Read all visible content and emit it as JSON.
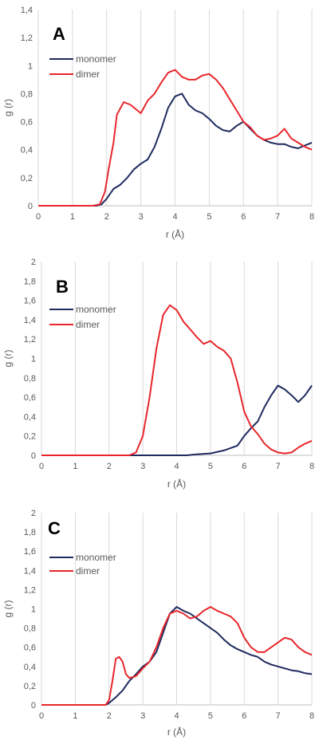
{
  "chart_data": [
    {
      "type": "line",
      "panel_label": "A",
      "xlabel": "r (Å)",
      "ylabel": "g (r)",
      "xlim": [
        0,
        8
      ],
      "ylim": [
        0,
        1.4
      ],
      "x_ticks": [
        "0",
        "1",
        "2",
        "3",
        "4",
        "5",
        "6",
        "7",
        "8"
      ],
      "y_ticks": [
        "0",
        "0,2",
        "0,4",
        "0,6",
        "0,8",
        "1",
        "1,2",
        "1,4"
      ],
      "grid": "vertical",
      "legend_position": "upper-left",
      "series": [
        {
          "name": "monomer",
          "color": "#1f2a5e",
          "x": [
            0,
            1.5,
            1.7,
            1.85,
            2.0,
            2.2,
            2.4,
            2.6,
            2.8,
            3.0,
            3.2,
            3.4,
            3.6,
            3.8,
            4.0,
            4.2,
            4.4,
            4.6,
            4.8,
            5.0,
            5.2,
            5.4,
            5.6,
            5.8,
            6.0,
            6.2,
            6.4,
            6.6,
            6.8,
            7.0,
            7.2,
            7.4,
            7.6,
            7.8,
            8.0
          ],
          "y": [
            0,
            0,
            0,
            0.01,
            0.05,
            0.12,
            0.15,
            0.2,
            0.26,
            0.3,
            0.33,
            0.42,
            0.55,
            0.7,
            0.78,
            0.8,
            0.72,
            0.68,
            0.66,
            0.62,
            0.57,
            0.54,
            0.53,
            0.57,
            0.6,
            0.55,
            0.5,
            0.47,
            0.45,
            0.44,
            0.44,
            0.42,
            0.41,
            0.43,
            0.45
          ]
        },
        {
          "name": "dimer",
          "color": "#e8262b",
          "x": [
            0,
            1.6,
            1.8,
            1.95,
            2.05,
            2.2,
            2.3,
            2.5,
            2.7,
            2.9,
            3.0,
            3.2,
            3.4,
            3.6,
            3.8,
            4.0,
            4.2,
            4.4,
            4.6,
            4.8,
            5.0,
            5.2,
            5.4,
            5.6,
            5.8,
            6.0,
            6.2,
            6.4,
            6.6,
            6.8,
            7.0,
            7.2,
            7.4,
            7.6,
            7.8,
            8.0
          ],
          "y": [
            0,
            0,
            0.01,
            0.1,
            0.25,
            0.45,
            0.65,
            0.74,
            0.72,
            0.68,
            0.66,
            0.75,
            0.8,
            0.88,
            0.95,
            0.97,
            0.92,
            0.9,
            0.9,
            0.93,
            0.94,
            0.9,
            0.84,
            0.76,
            0.68,
            0.6,
            0.56,
            0.5,
            0.47,
            0.48,
            0.5,
            0.55,
            0.48,
            0.45,
            0.42,
            0.4
          ]
        }
      ]
    },
    {
      "type": "line",
      "panel_label": "B",
      "xlabel": "r (Å)",
      "ylabel": "g (r)",
      "xlim": [
        0,
        8
      ],
      "ylim": [
        0,
        2
      ],
      "x_ticks": [
        "0",
        "1",
        "2",
        "3",
        "4",
        "5",
        "6",
        "7",
        "8"
      ],
      "y_ticks": [
        "0",
        "0,2",
        "0,4",
        "0,6",
        "0,8",
        "1",
        "1,2",
        "1,4",
        "1,6",
        "1,8",
        "2"
      ],
      "grid": "vertical",
      "legend_position": "upper-left",
      "series": [
        {
          "name": "monomer",
          "color": "#1f2a5e",
          "x": [
            0,
            4.3,
            4.6,
            5.0,
            5.4,
            5.8,
            6.0,
            6.2,
            6.4,
            6.6,
            6.8,
            7.0,
            7.2,
            7.4,
            7.6,
            7.8,
            8.0
          ],
          "y": [
            0,
            0,
            0.01,
            0.02,
            0.05,
            0.1,
            0.2,
            0.28,
            0.35,
            0.5,
            0.62,
            0.72,
            0.68,
            0.62,
            0.55,
            0.62,
            0.72
          ]
        },
        {
          "name": "dimer",
          "color": "#e8262b",
          "x": [
            0,
            2.6,
            2.8,
            3.0,
            3.2,
            3.4,
            3.6,
            3.8,
            4.0,
            4.2,
            4.4,
            4.6,
            4.8,
            5.0,
            5.2,
            5.4,
            5.6,
            5.8,
            6.0,
            6.2,
            6.4,
            6.6,
            6.8,
            7.0,
            7.2,
            7.4,
            7.6,
            7.8,
            8.0
          ],
          "y": [
            0,
            0,
            0.03,
            0.2,
            0.6,
            1.1,
            1.45,
            1.55,
            1.5,
            1.38,
            1.3,
            1.22,
            1.15,
            1.18,
            1.12,
            1.08,
            1.0,
            0.75,
            0.45,
            0.3,
            0.22,
            0.12,
            0.06,
            0.03,
            0.02,
            0.03,
            0.08,
            0.12,
            0.15
          ]
        }
      ]
    },
    {
      "type": "line",
      "panel_label": "C",
      "xlabel": "r (Å)",
      "ylabel": "g (r)",
      "xlim": [
        0,
        8
      ],
      "ylim": [
        0,
        2
      ],
      "x_ticks": [
        "0",
        "1",
        "2",
        "3",
        "4",
        "5",
        "6",
        "7",
        "8"
      ],
      "y_ticks": [
        "0",
        "0,2",
        "0,4",
        "0,6",
        "0,8",
        "1",
        "1,2",
        "1,4",
        "1,6",
        "1,8",
        "2"
      ],
      "grid": "vertical",
      "legend_position": "upper-left",
      "series": [
        {
          "name": "monomer",
          "color": "#1f2a5e",
          "x": [
            0,
            1.9,
            2.0,
            2.2,
            2.4,
            2.6,
            2.8,
            3.0,
            3.2,
            3.4,
            3.6,
            3.8,
            4.0,
            4.2,
            4.4,
            4.6,
            4.8,
            5.0,
            5.2,
            5.4,
            5.6,
            5.8,
            6.0,
            6.2,
            6.4,
            6.6,
            6.8,
            7.0,
            7.2,
            7.4,
            7.6,
            7.8,
            8.0
          ],
          "y": [
            0,
            0,
            0.02,
            0.08,
            0.15,
            0.25,
            0.32,
            0.4,
            0.45,
            0.55,
            0.75,
            0.95,
            1.02,
            0.98,
            0.95,
            0.9,
            0.85,
            0.8,
            0.75,
            0.68,
            0.62,
            0.58,
            0.55,
            0.52,
            0.5,
            0.45,
            0.42,
            0.4,
            0.38,
            0.36,
            0.35,
            0.33,
            0.32
          ]
        },
        {
          "name": "dimer",
          "color": "#e8262b",
          "x": [
            0,
            1.9,
            2.0,
            2.1,
            2.2,
            2.3,
            2.4,
            2.5,
            2.6,
            2.8,
            3.0,
            3.2,
            3.4,
            3.6,
            3.8,
            4.0,
            4.2,
            4.4,
            4.6,
            4.8,
            5.0,
            5.2,
            5.4,
            5.6,
            5.8,
            6.0,
            6.2,
            6.4,
            6.6,
            6.8,
            7.0,
            7.2,
            7.4,
            7.6,
            7.8,
            8.0
          ],
          "y": [
            0,
            0,
            0.05,
            0.25,
            0.48,
            0.5,
            0.45,
            0.32,
            0.28,
            0.3,
            0.38,
            0.45,
            0.6,
            0.8,
            0.95,
            0.98,
            0.95,
            0.9,
            0.92,
            0.98,
            1.02,
            0.98,
            0.95,
            0.92,
            0.85,
            0.7,
            0.6,
            0.55,
            0.55,
            0.6,
            0.65,
            0.7,
            0.68,
            0.6,
            0.55,
            0.52
          ]
        }
      ]
    }
  ]
}
